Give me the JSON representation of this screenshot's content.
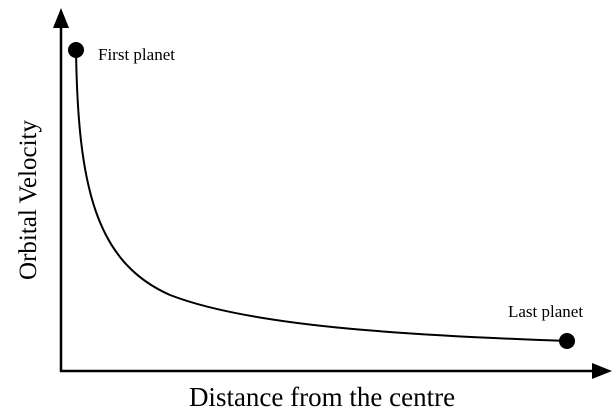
{
  "axes": {
    "x_label": "Distance from the centre",
    "y_label": "Orbital Velocity"
  },
  "points": [
    {
      "label": "First planet"
    },
    {
      "label": "Last planet"
    }
  ]
}
